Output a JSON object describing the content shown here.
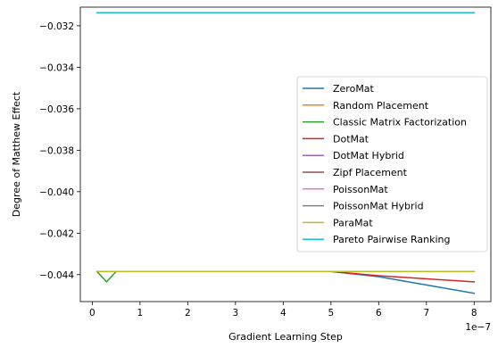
{
  "chart_data": {
    "type": "line",
    "xlabel": "Gradient Learning Step",
    "ylabel": "Degree of Matthew Effect",
    "x_offset_label": "1e−7",
    "xlim": [
      -0.25,
      8.35
    ],
    "ylim": [
      -0.0453,
      -0.0311
    ],
    "xticks": [
      0,
      1,
      2,
      3,
      4,
      5,
      6,
      7,
      8
    ],
    "xtick_labels": [
      "0",
      "1",
      "2",
      "3",
      "4",
      "5",
      "6",
      "7",
      "8"
    ],
    "yticks": [
      -0.044,
      -0.042,
      -0.04,
      -0.038,
      -0.036,
      -0.034,
      -0.032
    ],
    "ytick_labels": [
      "−0.044",
      "−0.042",
      "−0.040",
      "−0.038",
      "−0.036",
      "−0.034",
      "−0.032"
    ],
    "grid": false,
    "legend_position": "center-right",
    "series": [
      {
        "name": "ZeroMat",
        "color": "#1f77b4",
        "x": [
          0.1,
          0.3,
          0.5,
          1,
          2,
          3,
          4,
          5,
          6,
          7,
          8
        ],
        "y": [
          -0.04385,
          -0.04385,
          -0.04385,
          -0.04385,
          -0.04385,
          -0.04385,
          -0.04385,
          -0.04385,
          -0.0441,
          -0.0445,
          -0.0449
        ]
      },
      {
        "name": "Random Placement",
        "color": "#ff7f0e",
        "x": [
          0.1,
          0.3,
          0.5,
          1,
          2,
          3,
          4,
          5,
          6,
          7,
          8
        ],
        "y": [
          -0.04385,
          -0.04385,
          -0.04385,
          -0.04385,
          -0.04385,
          -0.04385,
          -0.04385,
          -0.04385,
          -0.04385,
          -0.04385,
          -0.04385
        ]
      },
      {
        "name": "Classic Matrix Factorization",
        "color": "#2ca02c",
        "x": [
          0.1,
          0.3,
          0.5,
          1,
          2,
          3,
          4,
          5,
          6,
          7,
          8
        ],
        "y": [
          -0.04385,
          -0.04435,
          -0.04385,
          -0.04385,
          -0.04385,
          -0.04385,
          -0.04385,
          -0.04385,
          -0.04385,
          -0.04385,
          -0.04385
        ]
      },
      {
        "name": "DotMat",
        "color": "#d62728",
        "x": [
          0.1,
          0.3,
          0.5,
          1,
          2,
          3,
          4,
          5,
          6,
          7,
          8
        ],
        "y": [
          -0.04385,
          -0.04385,
          -0.04385,
          -0.04385,
          -0.04385,
          -0.04385,
          -0.04385,
          -0.04385,
          -0.04405,
          -0.0442,
          -0.04435
        ]
      },
      {
        "name": "DotMat Hybrid",
        "color": "#9467bd",
        "x": [
          0.1,
          0.3,
          0.5,
          1,
          2,
          3,
          4,
          5,
          6,
          7,
          8
        ],
        "y": [
          -0.04385,
          -0.04385,
          -0.04385,
          -0.04385,
          -0.04385,
          -0.04385,
          -0.04385,
          -0.04385,
          -0.04385,
          -0.04385,
          -0.04385
        ]
      },
      {
        "name": "Zipf Placement",
        "color": "#8c564b",
        "x": [
          0.1,
          0.3,
          0.5,
          1,
          2,
          3,
          4,
          5,
          6,
          7,
          8
        ],
        "y": [
          -0.04385,
          -0.04385,
          -0.04385,
          -0.04385,
          -0.04385,
          -0.04385,
          -0.04385,
          -0.04385,
          -0.04385,
          -0.04385,
          -0.04385
        ]
      },
      {
        "name": "PoissonMat",
        "color": "#e377c2",
        "x": [
          0.1,
          0.3,
          0.5,
          1,
          2,
          3,
          4,
          5,
          6,
          7,
          8
        ],
        "y": [
          -0.04385,
          -0.04385,
          -0.04385,
          -0.04385,
          -0.04385,
          -0.04385,
          -0.04385,
          -0.04385,
          -0.04385,
          -0.04385,
          -0.04385
        ]
      },
      {
        "name": "PoissonMat Hybrid",
        "color": "#7f7f7f",
        "x": [
          0.1,
          0.3,
          0.5,
          1,
          2,
          3,
          4,
          5,
          6,
          7,
          8
        ],
        "y": [
          -0.04385,
          -0.04385,
          -0.04385,
          -0.04385,
          -0.04385,
          -0.04385,
          -0.04385,
          -0.04385,
          -0.04385,
          -0.04385,
          -0.04385
        ]
      },
      {
        "name": "ParaMat",
        "color": "#bcbd22",
        "x": [
          0.1,
          0.3,
          0.5,
          1,
          2,
          3,
          4,
          5,
          6,
          7,
          8
        ],
        "y": [
          -0.04385,
          -0.04385,
          -0.04385,
          -0.04385,
          -0.04385,
          -0.04385,
          -0.04385,
          -0.04385,
          -0.04385,
          -0.04385,
          -0.04385
        ]
      },
      {
        "name": "Pareto Pairwise Ranking",
        "color": "#17becf",
        "x": [
          0.1,
          0.3,
          0.5,
          1,
          2,
          3,
          4,
          5,
          6,
          7,
          8
        ],
        "y": [
          -0.03137,
          -0.03137,
          -0.03137,
          -0.03137,
          -0.03137,
          -0.03137,
          -0.03137,
          -0.03137,
          -0.03137,
          -0.03137,
          -0.03137
        ]
      }
    ]
  }
}
